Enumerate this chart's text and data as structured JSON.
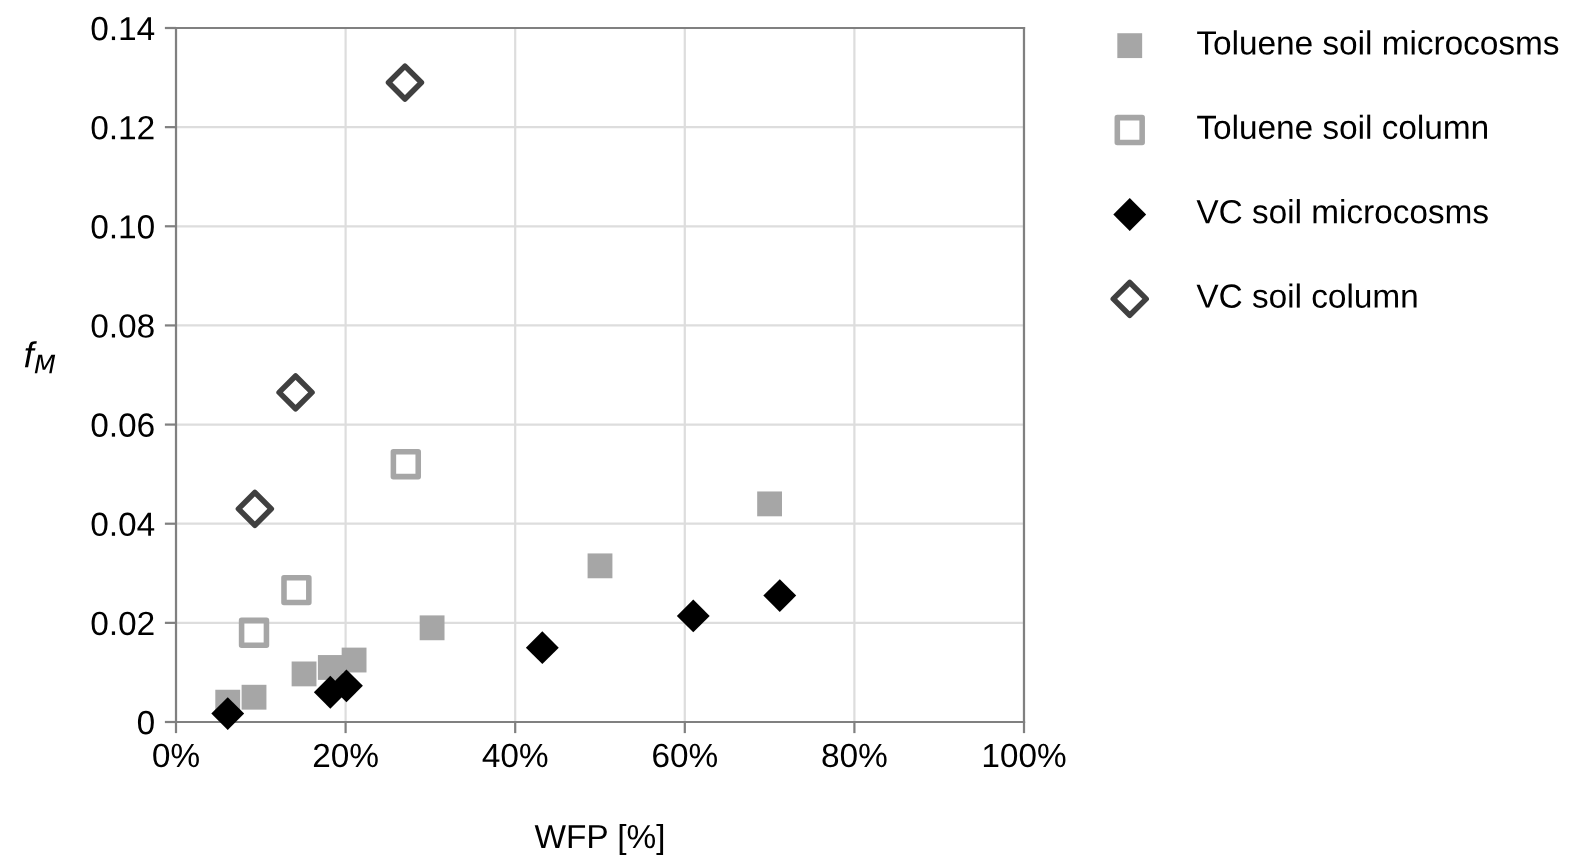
{
  "chart_data": {
    "type": "scatter",
    "xlabel": "WFP [%]",
    "ylabel": "f$_{M}$",
    "xlim": [
      0,
      100
    ],
    "ylim": [
      0,
      0.14
    ],
    "xticks": [
      {
        "value": 0,
        "label": "0%"
      },
      {
        "value": 20,
        "label": "20%"
      },
      {
        "value": 40,
        "label": "40%"
      },
      {
        "value": 60,
        "label": "60%"
      },
      {
        "value": 80,
        "label": "80%"
      },
      {
        "value": 100,
        "label": "100%"
      }
    ],
    "yticks": [
      {
        "value": 0,
        "label": "0"
      },
      {
        "value": 0.02,
        "label": "0.02"
      },
      {
        "value": 0.04,
        "label": "0.04"
      },
      {
        "value": 0.06,
        "label": "0.06"
      },
      {
        "value": 0.08,
        "label": "0.08"
      },
      {
        "value": 0.1,
        "label": "0.10"
      },
      {
        "value": 0.12,
        "label": "0.12"
      },
      {
        "value": 0.14,
        "label": "0.14"
      }
    ],
    "grid": true,
    "legend": "top right",
    "series": [
      {
        "name": "Toluene soil microcosms",
        "color": "#a6a6a6",
        "marker": "square",
        "x": [
          6.1,
          9.2,
          15.1,
          18.2,
          21,
          30.2,
          50,
          70
        ],
        "values": [
          0.004,
          0.005,
          0.0097,
          0.011,
          0.0125,
          0.019,
          0.0315,
          0.044
        ]
      },
      {
        "name": "Toluene soil column",
        "color": "#a6a6a6",
        "marker": "square",
        "x": [
          9.2,
          14.2,
          27.1
        ],
        "values": [
          0.018,
          0.0266,
          0.052
        ]
      },
      {
        "name": "VC soil microcosms",
        "color": "#000000",
        "marker": "diamond",
        "x": [
          6.1,
          18.2,
          20.1,
          43.2,
          61,
          71.2
        ],
        "values": [
          0.0017,
          0.006,
          0.0073,
          0.015,
          0.0214,
          0.0255
        ]
      },
      {
        "name": "VC soil column",
        "color": "#404040",
        "marker": "diamond",
        "x": [
          9.3,
          14.1,
          27
        ],
        "values": [
          0.043,
          0.0665,
          0.129
        ]
      }
    ]
  }
}
